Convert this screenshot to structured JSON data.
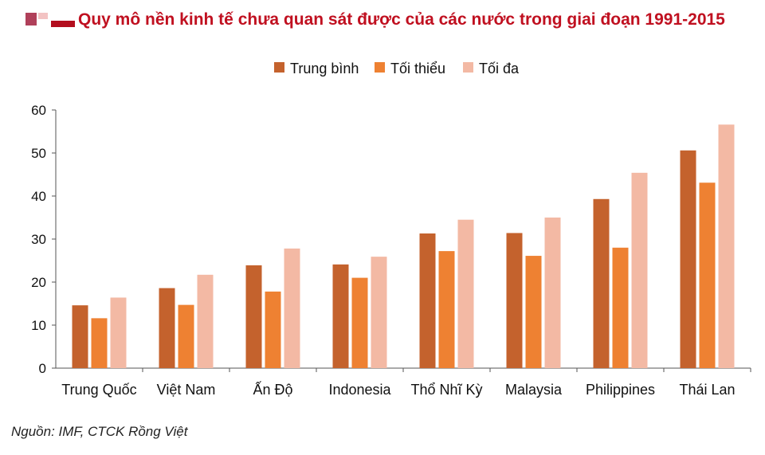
{
  "title": "Quy mô nền kinh tế chưa quan sát được của các nước trong giai đoạn 1991-2015",
  "source": "Nguồn: IMF, CTCK Rồng Việt",
  "colors": {
    "title": "#c01020",
    "series": [
      "#c4622d",
      "#ee8132",
      "#f3b9a4"
    ]
  },
  "chart_data": {
    "type": "bar",
    "categories": [
      "Trung Quốc",
      "Việt Nam",
      "Ấn Độ",
      "Indonesia",
      "Thổ Nhĩ Kỳ",
      "Malaysia",
      "Philippines",
      "Thái Lan"
    ],
    "series": [
      {
        "name": "Trung bình",
        "values": [
          14.6,
          18.6,
          23.9,
          24.1,
          31.3,
          31.4,
          39.3,
          50.6
        ]
      },
      {
        "name": "Tối thiểu",
        "values": [
          11.6,
          14.7,
          17.8,
          21.0,
          27.2,
          26.1,
          28.0,
          43.1
        ]
      },
      {
        "name": "Tối đa",
        "values": [
          16.4,
          21.7,
          27.8,
          25.9,
          34.5,
          35.0,
          45.4,
          56.6
        ]
      }
    ],
    "ylim": [
      0,
      60
    ],
    "yticks": [
      "0",
      "10",
      "20",
      "30",
      "40",
      "50",
      "60"
    ],
    "legend_position": "top-center",
    "grid": false
  }
}
